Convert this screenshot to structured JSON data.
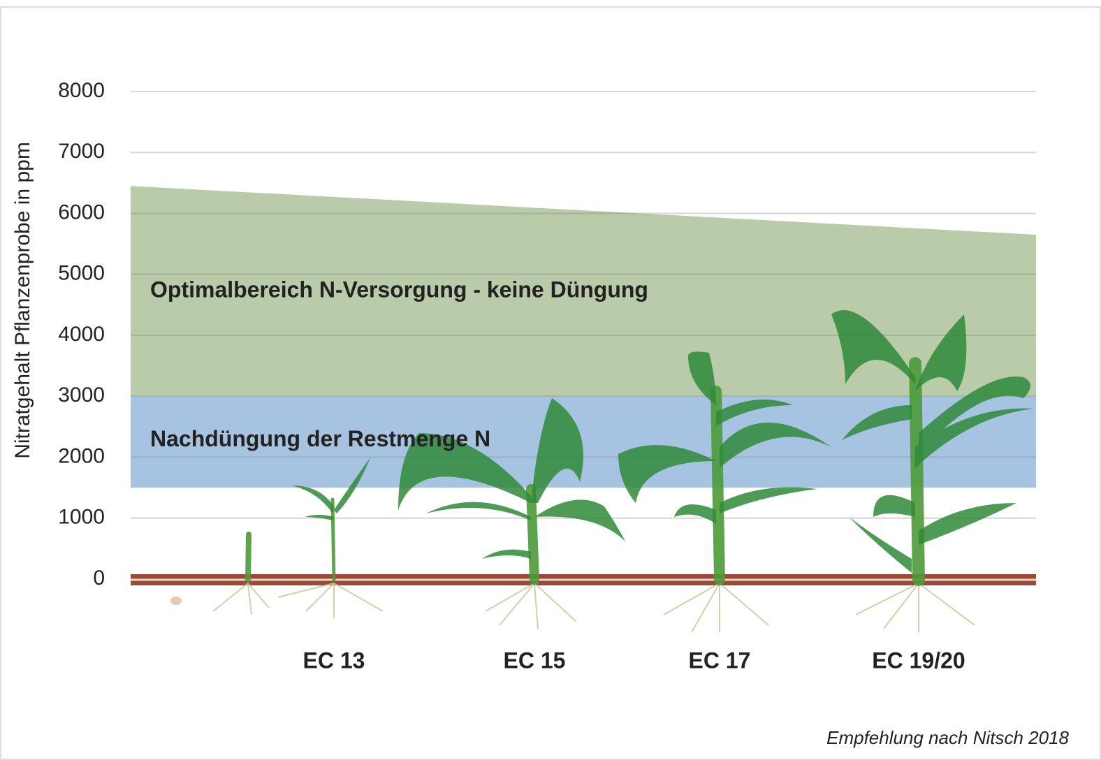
{
  "chart_data": {
    "type": "band",
    "ylabel": "Nitratgehalt Pflanzenprobe in ppm",
    "categories": [
      "EC 13",
      "EC 15",
      "EC 17",
      "EC 19/20"
    ],
    "bands": [
      {
        "name": "Optimalbereich N-Versorgung - keine Düngung",
        "color": "#b9cba8",
        "lower": [
          3000,
          3000
        ],
        "upper": [
          6450,
          5650
        ]
      },
      {
        "name": "Nachdüngung der Restmenge N",
        "color": "#a7c3e2",
        "lower": [
          1500,
          1500
        ],
        "upper": [
          3000,
          3000
        ]
      }
    ],
    "ylim": [
      0,
      8000
    ],
    "yticks": [
      0,
      1000,
      2000,
      3000,
      4000,
      5000,
      6000,
      7000,
      8000
    ],
    "grid": true,
    "source": "Empfehlung nach Nitsch 2018"
  }
}
